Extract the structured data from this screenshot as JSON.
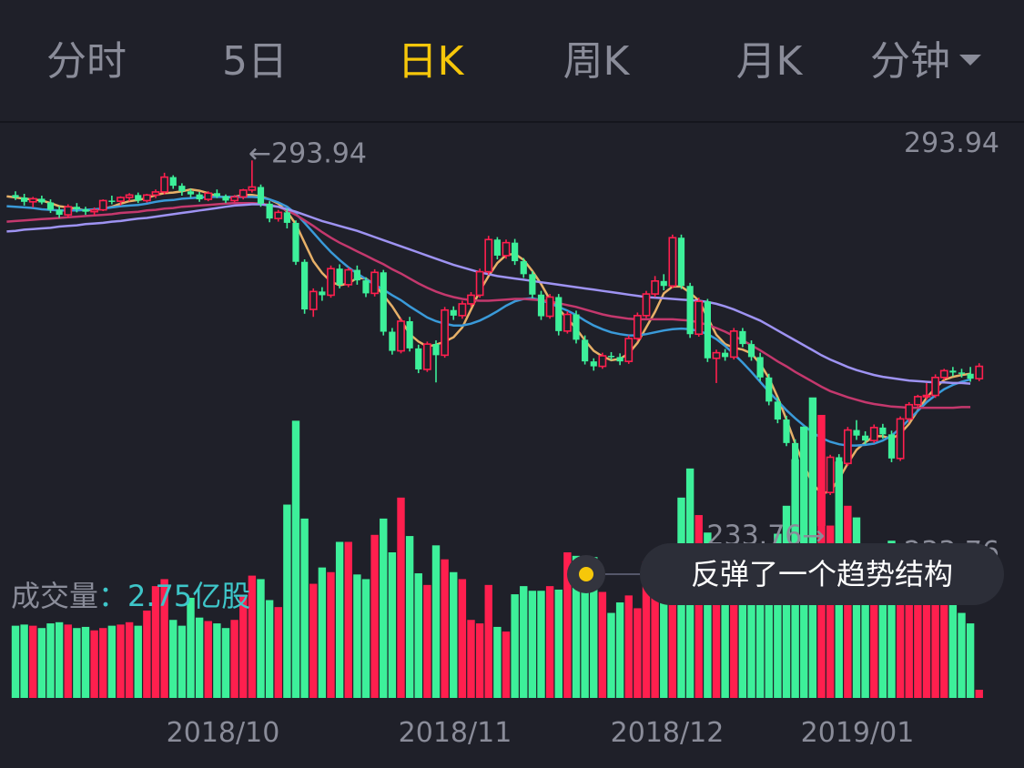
{
  "tabs": [
    {
      "label": "分时",
      "active": false
    },
    {
      "label": "5日",
      "active": false
    },
    {
      "label": "日K",
      "active": true
    },
    {
      "label": "周K",
      "active": false
    },
    {
      "label": "月K",
      "active": false
    },
    {
      "label": "分钟",
      "active": false,
      "dropdown": true
    }
  ],
  "colors": {
    "up": "#ff1f4e",
    "down": "#3df09a",
    "ma5": "#e7b068",
    "ma10": "#3a9ad9",
    "ma20": "#c4386d",
    "ma30": "#9e93f2",
    "text_muted": "#8a8c99",
    "accent": "#f6c70a",
    "volume_value": "#3ec6c9"
  },
  "volume": {
    "label": "成交量",
    "value": "：2.75亿股"
  },
  "tooltip": {
    "text": "反弹了一个趋势结构"
  },
  "chart_data": {
    "type": "candlestick",
    "price_range": [
      233.76,
      293.94
    ],
    "top_price_label": "293.94",
    "bottom_price_label": "233.76",
    "high_marker": "←293.94",
    "low_marker": "233.76→",
    "x_labels": [
      "2018/10",
      "2018/11",
      "2018/12",
      "2019/01"
    ],
    "candles": [
      [
        288.3,
        288.9,
        287.5,
        287.9
      ],
      [
        287.9,
        288.5,
        286.6,
        287.2
      ],
      [
        287.2,
        288.0,
        286.3,
        287.7
      ],
      [
        287.7,
        288.2,
        286.8,
        287.1
      ],
      [
        287.1,
        287.6,
        285.4,
        285.9
      ],
      [
        285.9,
        286.5,
        284.6,
        285.1
      ],
      [
        285.1,
        286.8,
        284.6,
        286.4
      ],
      [
        286.4,
        287.0,
        285.5,
        286.0
      ],
      [
        286.0,
        286.4,
        285.1,
        285.6
      ],
      [
        285.6,
        286.3,
        285.0,
        285.9
      ],
      [
        285.9,
        287.6,
        285.7,
        287.4
      ],
      [
        287.4,
        288.2,
        286.8,
        287.3
      ],
      [
        287.3,
        288.1,
        286.6,
        287.9
      ],
      [
        287.9,
        288.6,
        287.3,
        288.3
      ],
      [
        288.3,
        288.7,
        287.0,
        287.4
      ],
      [
        287.4,
        288.5,
        287.1,
        288.3
      ],
      [
        288.3,
        289.2,
        287.8,
        288.8
      ],
      [
        288.8,
        291.9,
        288.4,
        291.2
      ],
      [
        291.2,
        291.5,
        289.3,
        289.8
      ],
      [
        289.8,
        290.2,
        288.2,
        288.9
      ],
      [
        288.9,
        289.3,
        287.9,
        288.4
      ],
      [
        288.4,
        288.8,
        287.2,
        287.6
      ],
      [
        287.6,
        288.9,
        287.3,
        288.6
      ],
      [
        288.6,
        289.2,
        287.8,
        288.1
      ],
      [
        288.1,
        288.4,
        287.0,
        287.4
      ],
      [
        287.4,
        288.3,
        287.1,
        288.0
      ],
      [
        288.0,
        289.3,
        287.6,
        289.1
      ],
      [
        289.1,
        293.9,
        288.7,
        289.6
      ],
      [
        289.6,
        290.0,
        286.4,
        286.9
      ],
      [
        286.9,
        287.3,
        283.9,
        284.5
      ],
      [
        284.5,
        285.9,
        284.0,
        285.5
      ],
      [
        285.5,
        286.1,
        282.9,
        283.8
      ],
      [
        283.8,
        284.2,
        277.0,
        277.5
      ],
      [
        277.5,
        277.9,
        269.1,
        269.8
      ],
      [
        269.8,
        273.2,
        268.6,
        272.7
      ],
      [
        272.7,
        273.4,
        271.2,
        272.1
      ],
      [
        272.1,
        276.9,
        271.7,
        276.4
      ],
      [
        276.4,
        277.1,
        273.2,
        273.8
      ],
      [
        273.8,
        276.6,
        273.4,
        276.2
      ],
      [
        276.2,
        276.9,
        273.8,
        274.5
      ],
      [
        274.5,
        275.0,
        271.8,
        272.4
      ],
      [
        272.4,
        276.3,
        271.9,
        275.8
      ],
      [
        275.8,
        276.2,
        265.6,
        266.2
      ],
      [
        266.2,
        266.8,
        262.5,
        263.1
      ],
      [
        263.1,
        268.4,
        262.7,
        267.9
      ],
      [
        267.9,
        268.6,
        263.0,
        263.5
      ],
      [
        263.5,
        264.1,
        259.5,
        260.1
      ],
      [
        260.1,
        264.6,
        259.7,
        264.2
      ],
      [
        264.2,
        264.8,
        258.0,
        262.4
      ],
      [
        262.4,
        270.2,
        262.0,
        269.7
      ],
      [
        269.7,
        270.3,
        268.1,
        268.8
      ],
      [
        268.8,
        271.2,
        268.3,
        270.7
      ],
      [
        270.7,
        272.6,
        270.2,
        272.1
      ],
      [
        272.1,
        276.4,
        271.7,
        275.9
      ],
      [
        275.9,
        281.7,
        275.4,
        281.1
      ],
      [
        281.1,
        281.5,
        277.9,
        278.5
      ],
      [
        278.5,
        281.1,
        278.0,
        280.6
      ],
      [
        280.6,
        281.2,
        277.0,
        277.6
      ],
      [
        277.6,
        278.1,
        274.9,
        275.5
      ],
      [
        275.5,
        276.0,
        271.6,
        272.2
      ],
      [
        272.2,
        272.8,
        268.1,
        268.7
      ],
      [
        268.7,
        272.3,
        268.3,
        271.8
      ],
      [
        271.8,
        272.3,
        265.6,
        266.3
      ],
      [
        266.3,
        269.5,
        265.9,
        269.0
      ],
      [
        269.0,
        269.6,
        264.3,
        264.9
      ],
      [
        264.9,
        265.6,
        260.9,
        261.4
      ],
      [
        261.4,
        261.9,
        259.9,
        260.6
      ],
      [
        260.6,
        262.8,
        260.2,
        262.3
      ],
      [
        262.3,
        262.9,
        261.6,
        262.1
      ],
      [
        262.1,
        262.7,
        260.8,
        261.4
      ],
      [
        261.4,
        265.6,
        261.0,
        265.1
      ],
      [
        265.1,
        269.3,
        264.7,
        268.8
      ],
      [
        268.8,
        272.8,
        268.4,
        272.3
      ],
      [
        272.3,
        275.2,
        271.8,
        274.4
      ],
      [
        274.4,
        275.5,
        272.9,
        273.6
      ],
      [
        273.6,
        281.9,
        273.2,
        281.4
      ],
      [
        281.4,
        281.9,
        273.1,
        273.6
      ],
      [
        273.6,
        274.1,
        265.2,
        265.8
      ],
      [
        265.8,
        271.7,
        265.4,
        271.1
      ],
      [
        271.1,
        271.5,
        261.3,
        261.9
      ],
      [
        261.9,
        263.3,
        257.9,
        262.8
      ],
      [
        262.8,
        263.4,
        261.5,
        262.1
      ],
      [
        262.1,
        266.8,
        261.7,
        266.3
      ],
      [
        266.3,
        266.8,
        263.7,
        264.2
      ],
      [
        264.2,
        264.8,
        261.5,
        262.1
      ],
      [
        262.1,
        262.8,
        258.2,
        258.8
      ],
      [
        258.8,
        259.4,
        254.3,
        254.9
      ],
      [
        254.9,
        255.6,
        251.4,
        252.0
      ],
      [
        252.0,
        252.6,
        247.7,
        248.2
      ],
      [
        248.2,
        248.8,
        243.0,
        243.6
      ],
      [
        243.6,
        244.2,
        237.5,
        238.1
      ],
      [
        238.1,
        238.7,
        234.3,
        234.9
      ],
      [
        234.9,
        240.6,
        233.8,
        240.2
      ],
      [
        240.2,
        246.3,
        239.8,
        245.9
      ],
      [
        245.9,
        246.4,
        244.3,
        244.9
      ],
      [
        244.9,
        250.8,
        244.5,
        250.3
      ],
      [
        250.3,
        251.9,
        248.7,
        249.4
      ],
      [
        249.4,
        250.1,
        248.0,
        248.6
      ],
      [
        248.6,
        251.2,
        248.2,
        250.7
      ],
      [
        250.7,
        251.3,
        248.9,
        249.6
      ],
      [
        249.6,
        250.2,
        245.1,
        245.7
      ],
      [
        245.7,
        252.5,
        245.3,
        252.1
      ],
      [
        252.1,
        254.8,
        251.6,
        254.4
      ],
      [
        254.4,
        256.0,
        253.9,
        255.7
      ],
      [
        255.7,
        257.9,
        255.2,
        255.9
      ],
      [
        255.9,
        259.3,
        255.5,
        258.8
      ],
      [
        258.8,
        260.2,
        258.4,
        259.9
      ],
      [
        259.9,
        260.5,
        259.0,
        259.6
      ],
      [
        259.6,
        260.2,
        258.8,
        259.4
      ],
      [
        259.4,
        260.5,
        258.1,
        258.6
      ],
      [
        258.6,
        261.1,
        258.2,
        260.6
      ]
    ],
    "ma": [
      {
        "name": "MA5",
        "values": [
          288.1,
          287.9,
          287.7,
          287.6,
          287.4,
          287.0,
          286.5,
          286.3,
          286.1,
          285.8,
          285.9,
          286.1,
          286.4,
          286.9,
          287.3,
          287.5,
          287.8,
          288.3,
          288.6,
          288.7,
          288.9,
          289.2,
          289.0,
          288.6,
          288.1,
          287.9,
          288.0,
          288.3,
          288.3,
          288.1,
          287.6,
          286.9,
          285.6,
          283.6,
          280.6,
          277.6,
          275.7,
          274.3,
          273.7,
          274.0,
          274.9,
          274.8,
          273.8,
          272.1,
          270.3,
          268.1,
          265.8,
          264.6,
          263.8,
          264.1,
          264.6,
          265.3,
          266.9,
          269.8,
          272.8,
          275.2,
          277.3,
          278.6,
          278.8,
          277.8,
          276.0,
          273.9,
          271.4,
          269.9,
          268.3,
          266.7,
          264.8,
          263.1,
          262.2,
          261.6,
          261.8,
          262.7,
          264.4,
          266.9,
          269.4,
          272.4,
          273.5,
          273.5,
          272.5,
          271.2,
          268.5,
          265.7,
          264.2,
          263.6,
          263.3,
          262.7,
          261.0,
          258.7,
          255.6,
          252.0,
          248.2,
          244.6,
          241.6,
          240.0,
          240.4,
          242.4,
          244.9,
          247.1,
          248.3,
          249.3,
          249.3,
          248.9,
          249.7,
          251.3,
          253.5,
          255.5,
          257.1,
          258.4,
          258.9,
          259.2,
          259.4
        ]
      },
      {
        "name": "MA10",
        "values": [
          286.5,
          286.4,
          286.3,
          286.2,
          286.0,
          285.9,
          285.8,
          285.8,
          285.8,
          285.9,
          286.0,
          286.1,
          286.3,
          286.5,
          286.6,
          286.7,
          286.9,
          287.2,
          287.4,
          287.5,
          287.7,
          287.8,
          287.9,
          288.0,
          288.0,
          288.0,
          288.0,
          288.0,
          288.0,
          287.9,
          287.6,
          287.1,
          286.4,
          285.3,
          283.8,
          282.2,
          280.6,
          279.1,
          277.8,
          276.6,
          275.6,
          274.7,
          273.8,
          273.0,
          272.1,
          271.3,
          270.3,
          269.4,
          268.5,
          267.9,
          267.5,
          267.2,
          267.2,
          267.5,
          268.0,
          268.7,
          269.5,
          270.4,
          271.1,
          271.5,
          271.6,
          271.3,
          270.8,
          270.2,
          269.6,
          268.9,
          268.0,
          267.2,
          266.6,
          266.1,
          265.8,
          265.6,
          265.6,
          265.8,
          266.1,
          266.4,
          266.6,
          266.7,
          266.6,
          266.3,
          265.8,
          265.0,
          263.9,
          262.6,
          261.2,
          259.7,
          258.1,
          256.5,
          255.0,
          253.5,
          252.2,
          251.0,
          249.9,
          249.0,
          248.4,
          248.0,
          247.8,
          247.8,
          247.9,
          248.1,
          248.6,
          249.4,
          250.6,
          252.0,
          253.4,
          254.8,
          255.9,
          256.9,
          257.6,
          258.1,
          258.5
        ]
      },
      {
        "name": "MA20",
        "values": [
          284.0,
          284.1,
          284.2,
          284.3,
          284.4,
          284.5,
          284.6,
          284.7,
          284.8,
          284.9,
          285.0,
          285.1,
          285.2,
          285.4,
          285.5,
          285.6,
          285.8,
          285.9,
          286.1,
          286.2,
          286.4,
          286.5,
          286.6,
          286.7,
          286.8,
          286.9,
          287.0,
          287.0,
          287.0,
          286.9,
          286.7,
          286.4,
          285.8,
          285.1,
          284.2,
          283.3,
          282.3,
          281.4,
          280.6,
          279.9,
          279.2,
          278.5,
          277.8,
          277.1,
          276.3,
          275.6,
          274.8,
          274.0,
          273.3,
          272.7,
          272.2,
          271.8,
          271.5,
          271.3,
          271.2,
          271.2,
          271.3,
          271.4,
          271.5,
          271.5,
          271.4,
          271.3,
          271.1,
          270.8,
          270.5,
          270.2,
          269.8,
          269.4,
          269.0,
          268.7,
          268.5,
          268.3,
          268.2,
          268.2,
          268.2,
          268.2,
          268.2,
          268.1,
          268.0,
          267.7,
          267.3,
          266.8,
          266.2,
          265.5,
          264.8,
          264.0,
          263.2,
          262.3,
          261.4,
          260.6,
          259.7,
          258.9,
          258.1,
          257.3,
          256.6,
          256.1,
          255.6,
          255.2,
          254.8,
          254.5,
          254.3,
          254.1,
          254.0,
          253.9,
          253.9,
          253.9,
          253.9,
          253.9,
          253.9,
          254.0,
          254.0
        ]
      },
      {
        "name": "MA30",
        "values": [
          282.4,
          282.5,
          282.7,
          282.8,
          282.9,
          283.0,
          283.2,
          283.3,
          283.4,
          283.6,
          283.7,
          283.8,
          284.0,
          284.1,
          284.3,
          284.5,
          284.6,
          284.8,
          285.0,
          285.2,
          285.4,
          285.6,
          285.8,
          286.0,
          286.2,
          286.4,
          286.6,
          286.7,
          286.8,
          286.8,
          286.6,
          286.4,
          286.0,
          285.6,
          285.1,
          284.6,
          284.1,
          283.7,
          283.3,
          282.9,
          282.5,
          282.0,
          281.5,
          281.0,
          280.5,
          280.0,
          279.5,
          279.0,
          278.5,
          278.0,
          277.5,
          277.0,
          276.6,
          276.2,
          275.8,
          275.5,
          275.2,
          275.0,
          274.8,
          274.6,
          274.4,
          274.2,
          274.0,
          273.8,
          273.6,
          273.4,
          273.2,
          273.0,
          272.8,
          272.6,
          272.4,
          272.2,
          272.0,
          271.8,
          271.7,
          271.6,
          271.5,
          271.4,
          271.3,
          271.2,
          271.0,
          270.7,
          270.3,
          269.8,
          269.2,
          268.6,
          268.0,
          267.2,
          266.4,
          265.6,
          264.8,
          264.0,
          263.2,
          262.4,
          261.7,
          261.1,
          260.5,
          260.0,
          259.6,
          259.2,
          258.9,
          258.7,
          258.5,
          258.3,
          258.2,
          258.1,
          258.0,
          258.0,
          257.9,
          257.9,
          257.8
        ]
      }
    ],
    "volumes": [
      0.62,
      0.63,
      0.62,
      0.6,
      0.64,
      0.65,
      0.63,
      0.6,
      0.61,
      0.58,
      0.6,
      0.62,
      0.63,
      0.65,
      0.62,
      0.75,
      0.96,
      1.02,
      0.67,
      0.62,
      0.86,
      0.69,
      0.66,
      0.64,
      0.6,
      0.67,
      0.88,
      1.05,
      1.02,
      0.84,
      0.78,
      1.66,
      2.38,
      1.54,
      0.98,
      1.12,
      1.08,
      1.34,
      1.34,
      1.06,
      1.02,
      1.4,
      1.54,
      1.25,
      1.72,
      1.39,
      1.07,
      0.97,
      1.31,
      1.19,
      1.08,
      1.02,
      0.67,
      0.64,
      0.97,
      0.61,
      0.57,
      0.89,
      0.96,
      0.92,
      0.92,
      0.96,
      0.93,
      1.25,
      1.22,
      1.1,
      1.21,
      0.91,
      0.73,
      0.82,
      0.88,
      0.77,
      1.17,
      0.99,
      0.83,
      0.81,
      1.72,
      1.97,
      1.57,
      1.42,
      1.1,
      1.0,
      0.93,
      0.92,
      1.06,
      1.28,
      1.21,
      1.41,
      1.65,
      2.05,
      2.33,
      2.58,
      2.43,
      1.48,
      2.03,
      1.65,
      1.55,
      1.25,
      1.22,
      1.18,
      1.35,
      1.25,
      1.21,
      1.05,
      0.96,
      0.95,
      0.94,
      0.84,
      0.73,
      0.64,
      0.07
    ]
  }
}
